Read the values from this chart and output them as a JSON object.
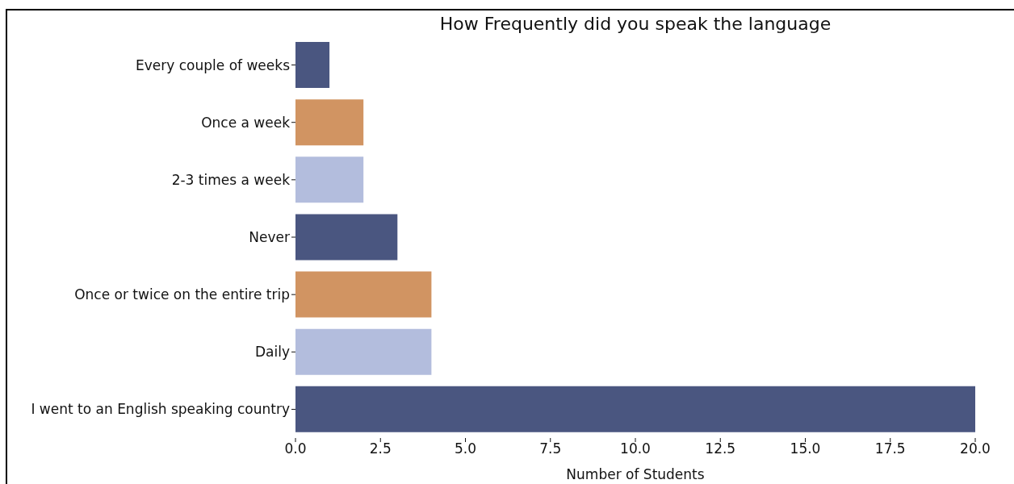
{
  "chart_data": {
    "type": "bar",
    "orientation": "horizontal",
    "title": "How Frequently did you speak the language",
    "xlabel": "Number of Students",
    "categories": [
      "Every couple of weeks",
      "Once a week",
      "2-3 times a week",
      "Never",
      "Once or twice on the entire trip",
      "Daily",
      "I went to an English speaking country"
    ],
    "values": [
      1,
      2,
      2,
      3,
      4,
      4,
      20
    ],
    "colors": [
      "#4a5680",
      "#d19462",
      "#b3bddd",
      "#4a5680",
      "#d19462",
      "#b3bddd",
      "#4a5680"
    ],
    "xlim": [
      0,
      20
    ],
    "xticks": [
      {
        "value": 0,
        "label": "0.0"
      },
      2.5,
      {
        "value": 5,
        "label": "5.0"
      },
      7.5,
      {
        "value": 10,
        "label": "10.0"
      },
      12.5,
      {
        "value": 15,
        "label": "15.0"
      },
      17.5,
      {
        "value": 20,
        "label": "20.0"
      }
    ],
    "grid": false,
    "legend": false
  }
}
